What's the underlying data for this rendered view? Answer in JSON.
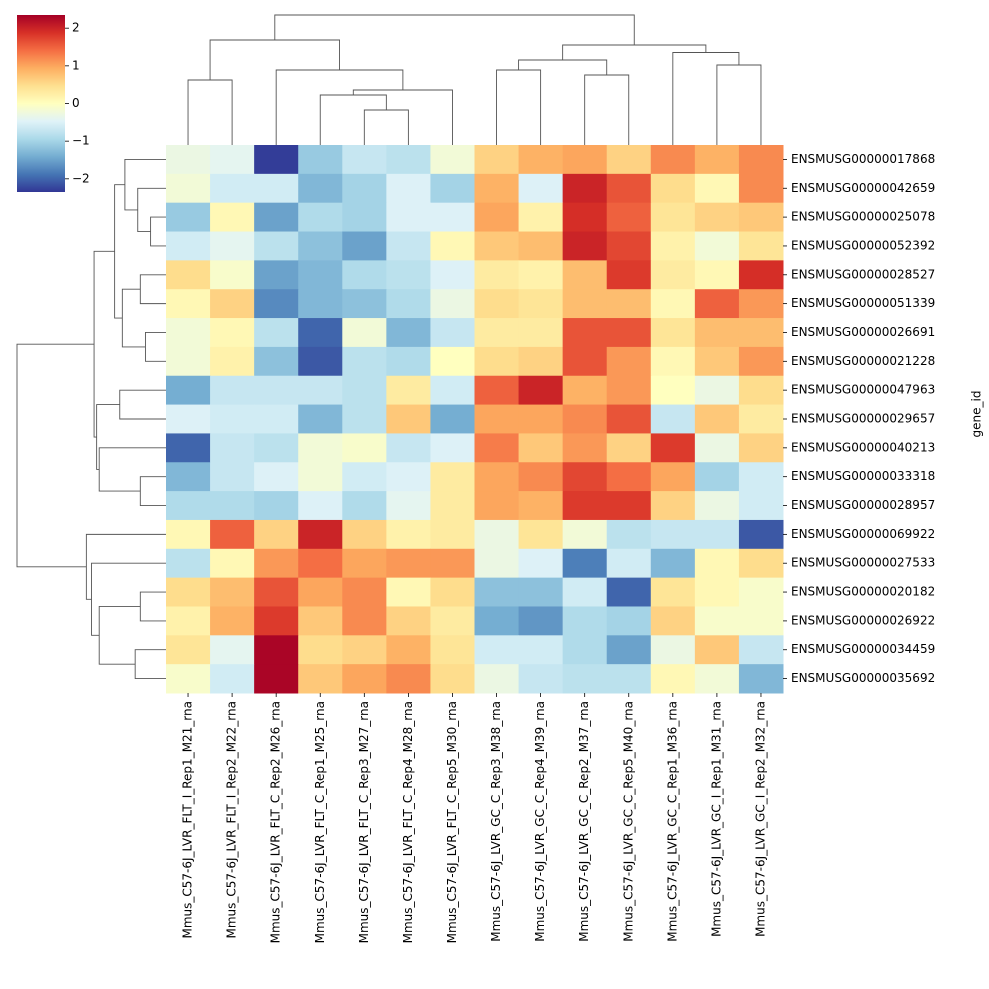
{
  "chart_data": {
    "type": "heatmap",
    "title": "",
    "xlabel": "",
    "ylabel": "gene_id",
    "colormap": "RdYlBu_r",
    "vmin": -2.35,
    "vmax": 2.35,
    "colorbar_ticks": [
      2,
      1,
      0,
      -1,
      -2
    ],
    "colorbar_tick_labels": [
      "2",
      "1",
      "0",
      "−1",
      "−2"
    ],
    "columns": [
      "Mmus_C57-6J_LVR_FLT_I_Rep1_M21_rna",
      "Mmus_C57-6J_LVR_FLT_I_Rep2_M22_rna",
      "Mmus_C57-6J_LVR_FLT_C_Rep2_M26_rna",
      "Mmus_C57-6J_LVR_FLT_C_Rep1_M25_rna",
      "Mmus_C57-6J_LVR_FLT_C_Rep3_M27_rna",
      "Mmus_C57-6J_LVR_FLT_C_Rep4_M28_rna",
      "Mmus_C57-6J_LVR_FLT_C_Rep5_M30_rna",
      "Mmus_C57-6J_LVR_GC_C_Rep3_M38_rna",
      "Mmus_C57-6J_LVR_GC_C_Rep4_M39_rna",
      "Mmus_C57-6J_LVR_GC_C_Rep2_M37_rna",
      "Mmus_C57-6J_LVR_GC_C_Rep5_M40_rna",
      "Mmus_C57-6J_LVR_GC_C_Rep1_M36_rna",
      "Mmus_C57-6J_LVR_GC_I_Rep1_M31_rna",
      "Mmus_C57-6J_LVR_GC_I_Rep2_M32_rna"
    ],
    "rows": [
      "ENSMUSG00000017868",
      "ENSMUSG00000042659",
      "ENSMUSG00000025078",
      "ENSMUSG00000052392",
      "ENSMUSG00000028527",
      "ENSMUSG00000051339",
      "ENSMUSG00000026691",
      "ENSMUSG00000021228",
      "ENSMUSG00000047963",
      "ENSMUSG00000029657",
      "ENSMUSG00000040213",
      "ENSMUSG00000033318",
      "ENSMUSG00000028957",
      "ENSMUSG00000069922",
      "ENSMUSG00000027533",
      "ENSMUSG00000020182",
      "ENSMUSG00000026922",
      "ENSMUSG00000034459",
      "ENSMUSG00000035692"
    ],
    "values": [
      [
        -0.3,
        -0.4,
        -2.3,
        -1.1,
        -0.7,
        -0.8,
        -0.2,
        0.6,
        0.9,
        1.0,
        0.6,
        1.2,
        0.9,
        1.2
      ],
      [
        -0.2,
        -0.6,
        -0.6,
        -1.3,
        -1.0,
        -0.5,
        -1.0,
        0.9,
        -0.5,
        2.0,
        1.6,
        0.5,
        0.1,
        1.2
      ],
      [
        -1.1,
        0.1,
        -1.5,
        -0.9,
        -1.0,
        -0.5,
        -0.5,
        1.0,
        0.2,
        1.9,
        1.5,
        0.4,
        0.6,
        0.7
      ],
      [
        -0.6,
        -0.4,
        -0.8,
        -1.2,
        -1.5,
        -0.7,
        0.1,
        0.7,
        0.8,
        2.0,
        1.7,
        0.2,
        -0.2,
        0.4
      ],
      [
        0.5,
        -0.1,
        -1.5,
        -1.3,
        -0.9,
        -0.8,
        -0.5,
        0.3,
        0.2,
        0.8,
        1.8,
        0.3,
        0.1,
        1.9
      ],
      [
        0.1,
        0.6,
        -1.7,
        -1.3,
        -1.2,
        -0.9,
        -0.3,
        0.5,
        0.4,
        0.8,
        0.8,
        0.1,
        1.5,
        1.1
      ],
      [
        -0.2,
        0.1,
        -0.8,
        -2.0,
        -0.2,
        -1.3,
        -0.7,
        0.3,
        0.3,
        1.6,
        1.6,
        0.4,
        0.8,
        0.8
      ],
      [
        -0.2,
        0.2,
        -1.2,
        -2.1,
        -0.8,
        -0.9,
        0.0,
        0.5,
        0.6,
        1.6,
        1.1,
        0.1,
        0.7,
        1.1
      ],
      [
        -1.4,
        -0.7,
        -0.7,
        -0.7,
        -0.8,
        0.3,
        -0.6,
        1.5,
        2.0,
        0.9,
        1.1,
        0.0,
        -0.3,
        0.5
      ],
      [
        -0.5,
        -0.6,
        -0.6,
        -1.3,
        -0.8,
        0.7,
        -1.4,
        1.0,
        1.0,
        1.2,
        1.6,
        -0.7,
        0.7,
        0.3
      ],
      [
        -2.0,
        -0.7,
        -0.8,
        -0.2,
        -0.1,
        -0.7,
        -0.5,
        1.3,
        0.7,
        1.1,
        0.6,
        1.8,
        -0.3,
        0.6
      ],
      [
        -1.3,
        -0.7,
        -0.5,
        -0.2,
        -0.6,
        -0.5,
        0.3,
        1.0,
        1.2,
        1.7,
        1.4,
        1.0,
        -1.0,
        -0.6
      ],
      [
        -0.9,
        -0.9,
        -1.0,
        -0.5,
        -0.9,
        -0.4,
        0.3,
        1.0,
        0.9,
        1.8,
        1.8,
        0.6,
        -0.3,
        -0.6
      ],
      [
        0.1,
        1.5,
        0.6,
        2.0,
        0.6,
        0.2,
        0.3,
        -0.3,
        0.4,
        -0.2,
        -0.8,
        -0.7,
        -0.7,
        -2.1
      ],
      [
        -0.8,
        0.1,
        1.1,
        1.4,
        1.0,
        1.1,
        1.1,
        -0.3,
        -0.5,
        -1.8,
        -0.6,
        -1.3,
        0.1,
        0.5
      ],
      [
        0.5,
        0.8,
        1.6,
        1.0,
        1.2,
        0.1,
        0.5,
        -1.2,
        -1.2,
        -0.6,
        -2.0,
        0.4,
        0.1,
        -0.1
      ],
      [
        0.2,
        0.9,
        1.8,
        0.7,
        1.2,
        0.6,
        0.3,
        -1.4,
        -1.6,
        -0.9,
        -1.0,
        0.6,
        -0.1,
        -0.1
      ],
      [
        0.4,
        -0.4,
        2.3,
        0.5,
        0.6,
        0.9,
        0.4,
        -0.6,
        -0.6,
        -0.9,
        -1.5,
        -0.3,
        0.7,
        -0.7
      ],
      [
        -0.1,
        -0.6,
        2.3,
        0.7,
        1.0,
        1.2,
        0.5,
        -0.3,
        -0.7,
        -0.8,
        -0.8,
        0.1,
        -0.2,
        -1.3
      ]
    ]
  }
}
